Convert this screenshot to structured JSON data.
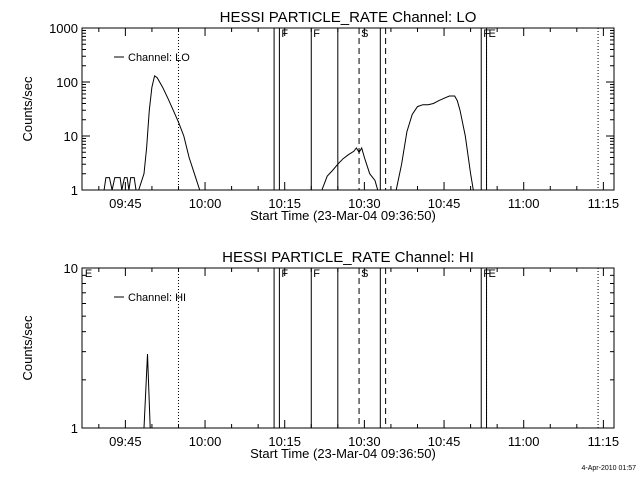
{
  "timestamp": "4-Apr-2010 01:57",
  "chart_data": [
    {
      "type": "line",
      "title": "HESSI PARTICLE_RATE Channel: LO",
      "xlabel": "Start Time (23-Mar-04 09:36:50)",
      "ylabel": "Counts/sec",
      "yscale": "log",
      "ylim": [
        1,
        1000
      ],
      "yticks": [
        1,
        10,
        100,
        1000
      ],
      "ytick_labels": [
        "1",
        "10",
        "100",
        "1000"
      ],
      "xlim": [
        "09:36:50",
        "11:17:00"
      ],
      "xticks": [
        "09:45",
        "10:00",
        "10:15",
        "10:30",
        "10:45",
        "11:00",
        "11:15"
      ],
      "legend": {
        "label": "Channel: LO",
        "placement": "top-left"
      },
      "grid": false,
      "vlines_solid": [
        "10:13",
        "10:14",
        "10:20",
        "10:25",
        "10:33",
        "10:52",
        "10:53"
      ],
      "vlines_dashed": [
        "10:29",
        "10:34"
      ],
      "vlines_dotted": [
        "09:55",
        "10:53",
        "11:14"
      ],
      "markers": [
        {
          "label": "F",
          "time": "10:14"
        },
        {
          "label": "F",
          "time": "10:20"
        },
        {
          "label": "S",
          "time": "10:29"
        },
        {
          "label": "F",
          "time": "10:52"
        },
        {
          "label": "E",
          "time": "10:53"
        }
      ],
      "series": [
        {
          "name": "Channel: LO",
          "segments": [
            [
              [
                "09:41:00",
                1
              ],
              [
                "09:41:20",
                1.7
              ],
              [
                "09:42:00",
                1.7
              ],
              [
                "09:42:30",
                1
              ],
              [
                "09:43:00",
                1.7
              ],
              [
                "09:44:00",
                1.7
              ],
              [
                "09:44:20",
                1
              ],
              [
                "09:44:50",
                1.7
              ],
              [
                "09:45:20",
                1.7
              ],
              [
                "09:45:40",
                1
              ],
              [
                "09:46:00",
                1.7
              ],
              [
                "09:46:40",
                1.7
              ],
              [
                "09:47:00",
                1
              ]
            ],
            [
              [
                "09:47:30",
                1
              ],
              [
                "09:48:30",
                2
              ],
              [
                "09:49:00",
                6
              ],
              [
                "09:49:30",
                30
              ],
              [
                "09:50:00",
                80
              ],
              [
                "09:50:30",
                130
              ],
              [
                "09:51:00",
                120
              ],
              [
                "09:52:00",
                80
              ],
              [
                "09:53:00",
                50
              ],
              [
                "09:54:00",
                30
              ],
              [
                "09:55:00",
                18
              ],
              [
                "09:56:00",
                10
              ],
              [
                "09:57:00",
                4
              ],
              [
                "09:58:00",
                2
              ],
              [
                "09:59:00",
                1
              ]
            ],
            [
              [
                "10:22:00",
                1
              ],
              [
                "10:23:00",
                1.8
              ],
              [
                "10:24:00",
                2.3
              ],
              [
                "10:25:00",
                3
              ],
              [
                "10:26:00",
                3.8
              ],
              [
                "10:27:00",
                4.5
              ],
              [
                "10:28:00",
                5.2
              ],
              [
                "10:28:30",
                6
              ],
              [
                "10:29:00",
                5
              ],
              [
                "10:29:30",
                6
              ],
              [
                "10:30:00",
                4
              ],
              [
                "10:31:00",
                2
              ],
              [
                "10:32:00",
                1.5
              ],
              [
                "10:32:30",
                1
              ]
            ],
            [
              [
                "10:36:00",
                1
              ],
              [
                "10:37:00",
                3
              ],
              [
                "10:38:00",
                12
              ],
              [
                "10:39:00",
                25
              ],
              [
                "10:40:00",
                35
              ],
              [
                "10:41:00",
                38
              ],
              [
                "10:42:00",
                38
              ],
              [
                "10:43:00",
                40
              ],
              [
                "10:44:00",
                45
              ],
              [
                "10:45:00",
                50
              ],
              [
                "10:46:00",
                55
              ],
              [
                "10:47:00",
                55
              ],
              [
                "10:47:30",
                45
              ],
              [
                "10:48:00",
                30
              ],
              [
                "10:49:00",
                10
              ],
              [
                "10:50:00",
                2
              ],
              [
                "10:50:30",
                1
              ]
            ]
          ]
        }
      ]
    },
    {
      "type": "line",
      "title": "HESSI PARTICLE_RATE Channel: HI",
      "xlabel": "Start Time (23-Mar-04 09:36:50)",
      "ylabel": "Counts/sec",
      "yscale": "log",
      "ylim": [
        1,
        10
      ],
      "yticks": [
        1,
        10
      ],
      "ytick_labels": [
        "1",
        "10"
      ],
      "xlim": [
        "09:36:50",
        "11:17:00"
      ],
      "xticks": [
        "09:45",
        "10:00",
        "10:15",
        "10:30",
        "10:45",
        "11:00",
        "11:15"
      ],
      "legend": {
        "label": "Channel: HI",
        "placement": "top-left"
      },
      "grid": false,
      "vlines_solid": [
        "10:13",
        "10:14",
        "10:20",
        "10:25",
        "10:33",
        "10:52",
        "10:53"
      ],
      "vlines_dashed": [
        "10:29",
        "10:34"
      ],
      "vlines_dotted": [
        "09:55",
        "10:53",
        "11:14"
      ],
      "markers": [
        {
          "label": "E",
          "time": "09:37"
        },
        {
          "label": "F",
          "time": "10:14"
        },
        {
          "label": "F",
          "time": "10:20"
        },
        {
          "label": "S",
          "time": "10:29"
        },
        {
          "label": "F",
          "time": "10:52"
        },
        {
          "label": "E",
          "time": "10:53"
        }
      ],
      "series": [
        {
          "name": "Channel: HI",
          "segments": [
            [
              [
                "09:48:30",
                1
              ],
              [
                "09:49:10",
                2.9
              ],
              [
                "09:49:40",
                1
              ]
            ]
          ]
        }
      ]
    }
  ]
}
